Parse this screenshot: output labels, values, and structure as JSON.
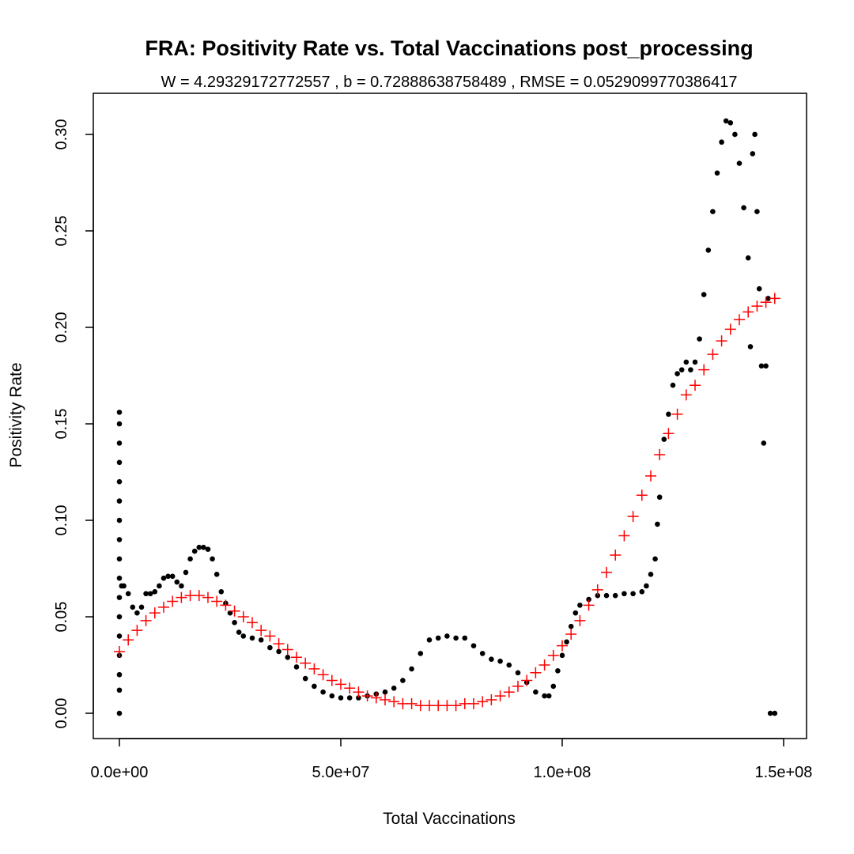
{
  "chart_data": {
    "type": "scatter",
    "title": "FRA: Positivity Rate vs. Total Vaccinations post_processing",
    "subtitle": "W = 4.29329172772557 , b = 0.72888638758489 , RMSE = 0.0529099770386417",
    "xlabel": "Total Vaccinations",
    "ylabel": "Positivity Rate",
    "xlim": [
      -5890000,
      155180000
    ],
    "ylim": [
      -0.0131,
      0.3213
    ],
    "xticks": [
      {
        "value": 0,
        "label": "0.0e+00"
      },
      {
        "value": 50000000.0,
        "label": "5.0e+07"
      },
      {
        "value": 100000000.0,
        "label": "1.0e+08"
      },
      {
        "value": 150000000.0,
        "label": "1.5e+08"
      }
    ],
    "yticks": [
      {
        "value": 0,
        "label": "0.00"
      },
      {
        "value": 0.05,
        "label": "0.05"
      },
      {
        "value": 0.1,
        "label": "0.10"
      },
      {
        "value": 0.15,
        "label": "0.15"
      },
      {
        "value": 0.2,
        "label": "0.20"
      },
      {
        "value": 0.25,
        "label": "0.25"
      },
      {
        "value": 0.3,
        "label": "0.30"
      }
    ],
    "series": [
      {
        "color": "#000000",
        "marker": "dot",
        "x": [
          0,
          0,
          0,
          0,
          0,
          0,
          0,
          0,
          0,
          0,
          0,
          0,
          0,
          0,
          0,
          0,
          0,
          500000.0,
          1000000.0,
          2000000.0,
          3000000.0,
          4000000.0,
          5000000.0,
          6000000.0,
          7000000.0,
          8000000.0,
          9000000.0,
          10000000.0,
          11000000.0,
          12000000.0,
          13000000.0,
          14000000.0,
          15000000.0,
          16000000.0,
          17000000.0,
          18000000.0,
          19000000.0,
          20000000.0,
          21000000.0,
          22000000.0,
          23000000.0,
          24000000.0,
          25000000.0,
          26000000.0,
          27000000.0,
          28000000.0,
          30000000.0,
          32000000.0,
          34000000.0,
          36000000.0,
          38000000.0,
          40000000.0,
          42000000.0,
          44000000.0,
          46000000.0,
          48000000.0,
          50000000.0,
          52000000.0,
          54000000.0,
          56000000.0,
          58000000.0,
          60000000.0,
          62000000.0,
          64000000.0,
          66000000.0,
          68000000.0,
          70000000.0,
          72000000.0,
          74000000.0,
          76000000.0,
          78000000.0,
          80000000.0,
          82000000.0,
          84000000.0,
          86000000.0,
          88000000.0,
          90000000.0,
          92000000.0,
          94000000.0,
          96000000.0,
          97000000.0,
          98000000.0,
          99000000.0,
          100000000.0,
          101000000.0,
          102000000.0,
          103000000.0,
          104000000.0,
          106000000.0,
          108000000.0,
          110000000.0,
          112000000.0,
          114000000.0,
          116000000.0,
          118000000.0,
          119000000.0,
          120000000.0,
          121000000.0,
          121500000.0,
          122000000.0,
          123000000.0,
          124000000.0,
          125000000.0,
          126000000.0,
          127000000.0,
          128000000.0,
          129000000.0,
          130000000.0,
          131000000.0,
          132000000.0,
          133000000.0,
          134000000.0,
          135000000.0,
          136000000.0,
          137000000.0,
          138000000.0,
          139000000.0,
          140000000.0,
          141000000.0,
          142000000.0,
          142500000.0,
          143000000.0,
          143500000.0,
          144000000.0,
          144500000.0,
          145000000.0,
          145500000.0,
          146000000.0,
          146500000.0,
          147000000.0,
          148000000.0
        ],
        "values": [
          0,
          0.012,
          0.02,
          0.03,
          0.04,
          0.05,
          0.06,
          0.07,
          0.08,
          0.09,
          0.1,
          0.11,
          0.12,
          0.13,
          0.14,
          0.15,
          0.156,
          0.066,
          0.066,
          0.062,
          0.055,
          0.052,
          0.055,
          0.062,
          0.062,
          0.063,
          0.066,
          0.07,
          0.071,
          0.071,
          0.068,
          0.066,
          0.073,
          0.08,
          0.084,
          0.086,
          0.086,
          0.085,
          0.08,
          0.072,
          0.063,
          0.057,
          0.052,
          0.047,
          0.042,
          0.04,
          0.039,
          0.038,
          0.034,
          0.032,
          0.029,
          0.024,
          0.018,
          0.014,
          0.011,
          0.009,
          0.008,
          0.008,
          0.008,
          0.009,
          0.01,
          0.011,
          0.013,
          0.017,
          0.023,
          0.031,
          0.038,
          0.039,
          0.04,
          0.039,
          0.039,
          0.035,
          0.031,
          0.028,
          0.027,
          0.025,
          0.021,
          0.016,
          0.011,
          0.009,
          0.009,
          0.014,
          0.022,
          0.03,
          0.037,
          0.045,
          0.052,
          0.056,
          0.059,
          0.061,
          0.061,
          0.061,
          0.062,
          0.062,
          0.063,
          0.066,
          0.072,
          0.08,
          0.098,
          0.112,
          0.142,
          0.155,
          0.17,
          0.176,
          0.178,
          0.182,
          0.178,
          0.182,
          0.194,
          0.217,
          0.24,
          0.26,
          0.28,
          0.296,
          0.307,
          0.306,
          0.3,
          0.285,
          0.262,
          0.236,
          0.19,
          0.29,
          0.3,
          0.26,
          0.22,
          0.18,
          0.14,
          0.18,
          0.215,
          0,
          0
        ]
      },
      {
        "color": "#ff0000",
        "marker": "cross",
        "x": [
          0,
          2000000.0,
          4000000.0,
          6000000.0,
          8000000.0,
          10000000.0,
          12000000.0,
          14000000.0,
          16000000.0,
          18000000.0,
          20000000.0,
          22000000.0,
          24000000.0,
          26000000.0,
          28000000.0,
          30000000.0,
          32000000.0,
          34000000.0,
          36000000.0,
          38000000.0,
          40000000.0,
          42000000.0,
          44000000.0,
          46000000.0,
          48000000.0,
          50000000.0,
          52000000.0,
          54000000.0,
          56000000.0,
          58000000.0,
          60000000.0,
          62000000.0,
          64000000.0,
          66000000.0,
          68000000.0,
          70000000.0,
          72000000.0,
          74000000.0,
          76000000.0,
          78000000.0,
          80000000.0,
          82000000.0,
          84000000.0,
          86000000.0,
          88000000.0,
          90000000.0,
          92000000.0,
          94000000.0,
          96000000.0,
          98000000.0,
          100000000.0,
          102000000.0,
          104000000.0,
          106000000.0,
          108000000.0,
          110000000.0,
          112000000.0,
          114000000.0,
          116000000.0,
          118000000.0,
          120000000.0,
          122000000.0,
          124000000.0,
          126000000.0,
          128000000.0,
          130000000.0,
          132000000.0,
          134000000.0,
          136000000.0,
          138000000.0,
          140000000.0,
          142000000.0,
          144000000.0,
          146000000.0,
          148000000.0
        ],
        "values": [
          0.032,
          0.038,
          0.043,
          0.048,
          0.052,
          0.055,
          0.058,
          0.06,
          0.061,
          0.061,
          0.06,
          0.058,
          0.056,
          0.053,
          0.05,
          0.047,
          0.043,
          0.04,
          0.036,
          0.033,
          0.029,
          0.026,
          0.023,
          0.02,
          0.017,
          0.015,
          0.013,
          0.011,
          0.009,
          0.008,
          0.007,
          0.006,
          0.005,
          0.005,
          0.004,
          0.004,
          0.004,
          0.004,
          0.004,
          0.005,
          0.005,
          0.006,
          0.007,
          0.009,
          0.011,
          0.014,
          0.017,
          0.021,
          0.025,
          0.03,
          0.035,
          0.041,
          0.048,
          0.056,
          0.064,
          0.073,
          0.082,
          0.092,
          0.102,
          0.113,
          0.123,
          0.134,
          0.145,
          0.155,
          0.165,
          0.17,
          0.178,
          0.186,
          0.193,
          0.199,
          0.204,
          0.208,
          0.211,
          0.213,
          0.215
        ]
      }
    ]
  }
}
